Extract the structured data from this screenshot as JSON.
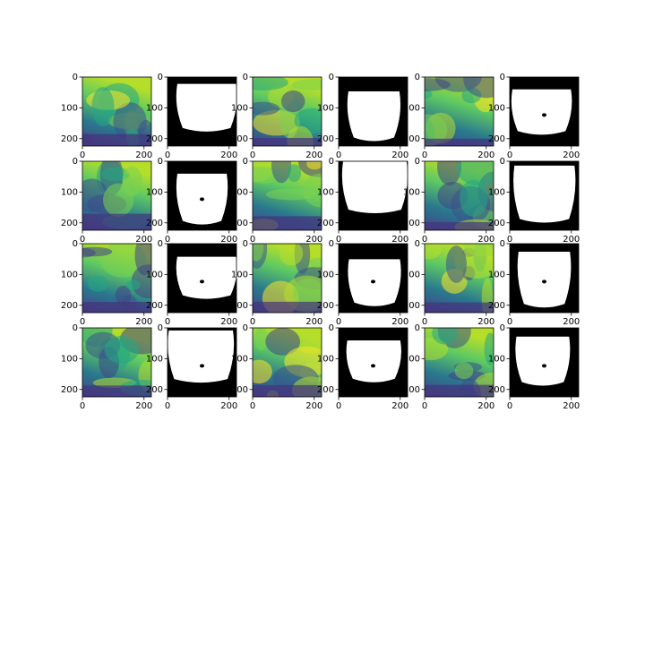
{
  "chart_data": [
    {
      "type": "image",
      "cmap": "viridis",
      "xlim": [
        0,
        224
      ],
      "ylim": [
        224,
        0
      ],
      "xticks": [
        0,
        200
      ],
      "yticks": [
        0,
        100,
        200
      ]
    },
    {
      "type": "image",
      "cmap": "gray",
      "xlim": [
        0,
        224
      ],
      "ylim": [
        224,
        0
      ],
      "xticks": [
        0,
        200
      ],
      "yticks": [
        0,
        100,
        200
      ]
    },
    {
      "type": "image",
      "cmap": "viridis",
      "xlim": [
        0,
        224
      ],
      "ylim": [
        224,
        0
      ],
      "xticks": [
        0,
        200
      ],
      "yticks": [
        0,
        100,
        200
      ]
    },
    {
      "type": "image",
      "cmap": "gray",
      "xlim": [
        0,
        224
      ],
      "ylim": [
        224,
        0
      ],
      "xticks": [
        0,
        200
      ],
      "yticks": [
        0,
        100,
        200
      ]
    },
    {
      "type": "image",
      "cmap": "viridis",
      "xlim": [
        0,
        224
      ],
      "ylim": [
        224,
        0
      ],
      "xticks": [
        0,
        200
      ],
      "yticks": [
        0,
        100,
        200
      ]
    },
    {
      "type": "image",
      "cmap": "gray",
      "xlim": [
        0,
        224
      ],
      "ylim": [
        224,
        0
      ],
      "xticks": [
        0,
        200
      ],
      "yticks": [
        0,
        100,
        200
      ]
    },
    {
      "type": "image",
      "cmap": "viridis",
      "xlim": [
        0,
        224
      ],
      "ylim": [
        224,
        0
      ],
      "xticks": [
        0,
        200
      ],
      "yticks": [
        0,
        100,
        200
      ]
    },
    {
      "type": "image",
      "cmap": "gray",
      "xlim": [
        0,
        224
      ],
      "ylim": [
        224,
        0
      ],
      "xticks": [
        0,
        200
      ],
      "yticks": [
        0,
        100,
        200
      ]
    },
    {
      "type": "image",
      "cmap": "viridis",
      "xlim": [
        0,
        224
      ],
      "ylim": [
        224,
        0
      ],
      "xticks": [
        0,
        200
      ],
      "yticks": [
        0,
        100,
        200
      ]
    },
    {
      "type": "image",
      "cmap": "gray",
      "xlim": [
        0,
        224
      ],
      "ylim": [
        224,
        0
      ],
      "xticks": [
        0,
        200
      ],
      "yticks": [
        0,
        100,
        200
      ]
    },
    {
      "type": "image",
      "cmap": "viridis",
      "xlim": [
        0,
        224
      ],
      "ylim": [
        224,
        0
      ],
      "xticks": [
        0,
        200
      ],
      "yticks": [
        0,
        100,
        200
      ]
    },
    {
      "type": "image",
      "cmap": "gray",
      "xlim": [
        0,
        224
      ],
      "ylim": [
        224,
        0
      ],
      "xticks": [
        0,
        200
      ],
      "yticks": [
        0,
        100,
        200
      ]
    },
    {
      "type": "image",
      "cmap": "viridis",
      "xlim": [
        0,
        224
      ],
      "ylim": [
        224,
        0
      ],
      "xticks": [
        0,
        200
      ],
      "yticks": [
        0,
        100,
        200
      ]
    },
    {
      "type": "image",
      "cmap": "gray",
      "xlim": [
        0,
        224
      ],
      "ylim": [
        224,
        0
      ],
      "xticks": [
        0,
        200
      ],
      "yticks": [
        0,
        100,
        200
      ]
    },
    {
      "type": "image",
      "cmap": "viridis",
      "xlim": [
        0,
        224
      ],
      "ylim": [
        224,
        0
      ],
      "xticks": [
        0,
        200
      ],
      "yticks": [
        0,
        100,
        200
      ]
    },
    {
      "type": "image",
      "cmap": "gray",
      "xlim": [
        0,
        224
      ],
      "ylim": [
        224,
        0
      ],
      "xticks": [
        0,
        200
      ],
      "yticks": [
        0,
        100,
        200
      ]
    },
    {
      "type": "image",
      "cmap": "viridis",
      "xlim": [
        0,
        224
      ],
      "ylim": [
        224,
        0
      ],
      "xticks": [
        0,
        200
      ],
      "yticks": [
        0,
        100,
        200
      ]
    },
    {
      "type": "image",
      "cmap": "gray",
      "xlim": [
        0,
        224
      ],
      "ylim": [
        224,
        0
      ],
      "xticks": [
        0,
        200
      ],
      "yticks": [
        0,
        100,
        200
      ]
    },
    {
      "type": "image",
      "cmap": "viridis",
      "xlim": [
        0,
        224
      ],
      "ylim": [
        224,
        0
      ],
      "xticks": [
        0,
        200
      ],
      "yticks": [
        0,
        100,
        200
      ]
    },
    {
      "type": "image",
      "cmap": "gray",
      "xlim": [
        0,
        224
      ],
      "ylim": [
        224,
        0
      ],
      "xticks": [
        0,
        200
      ],
      "yticks": [
        0,
        100,
        200
      ]
    },
    {
      "type": "image",
      "cmap": "viridis",
      "xlim": [
        0,
        224
      ],
      "ylim": [
        224,
        0
      ],
      "xticks": [
        0,
        200
      ],
      "yticks": [
        0,
        100,
        200
      ]
    },
    {
      "type": "image",
      "cmap": "gray",
      "xlim": [
        0,
        224
      ],
      "ylim": [
        224,
        0
      ],
      "xticks": [
        0,
        200
      ],
      "yticks": [
        0,
        100,
        200
      ]
    },
    {
      "type": "image",
      "cmap": "viridis",
      "xlim": [
        0,
        224
      ],
      "ylim": [
        224,
        0
      ],
      "xticks": [
        0,
        200
      ],
      "yticks": [
        0,
        100,
        200
      ]
    },
    {
      "type": "image",
      "cmap": "gray",
      "xlim": [
        0,
        224
      ],
      "ylim": [
        224,
        0
      ],
      "xticks": [
        0,
        200
      ],
      "yticks": [
        0,
        100,
        200
      ]
    }
  ]
}
